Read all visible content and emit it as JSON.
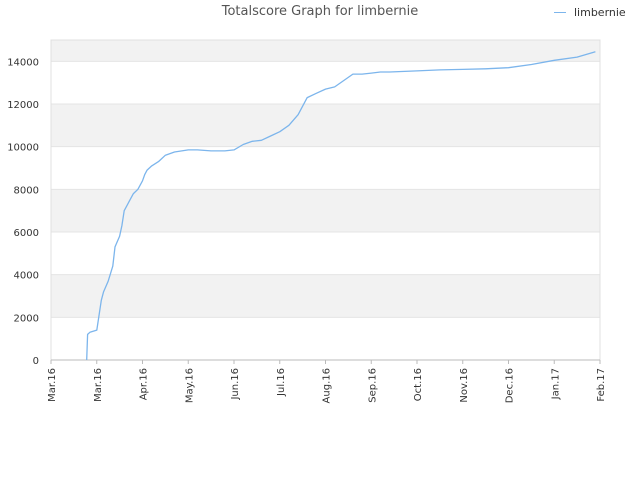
{
  "chart_data": {
    "type": "line",
    "title": "Totalscore Graph for limbernie",
    "xlabel": "",
    "ylabel": "",
    "ylim": [
      0,
      15000
    ],
    "y_ticks": [
      "0",
      "2000",
      "4000",
      "6000",
      "8000",
      "10000",
      "12000",
      "14000"
    ],
    "x_ticks": [
      "Mar.16",
      "Mar.16",
      "Apr.16",
      "May.16",
      "Jun.16",
      "Jul.16",
      "Aug.16",
      "Sep.16",
      "Oct.16",
      "Nov.16",
      "Dec.16",
      "Jan.17",
      "Feb.17"
    ],
    "legend_position": "top-right",
    "grid": true,
    "series": [
      {
        "name": "limbernie",
        "color": "#7cb5ec",
        "x": [
          0.78,
          0.8,
          0.85,
          1.0,
          1.1,
          1.15,
          1.25,
          1.35,
          1.4,
          1.5,
          1.55,
          1.6,
          1.7,
          1.8,
          1.9,
          2.0,
          2.05,
          2.1,
          2.2,
          2.35,
          2.5,
          2.7,
          3.0,
          3.2,
          3.5,
          3.8,
          4.0,
          4.2,
          4.4,
          4.6,
          4.8,
          5.0,
          5.2,
          5.4,
          5.6,
          5.8,
          6.0,
          6.2,
          6.4,
          6.6,
          6.8,
          7.0,
          7.2,
          7.4,
          7.6,
          8.0,
          8.5,
          9.0,
          9.5,
          10.0,
          10.5,
          11.0,
          11.5,
          11.9
        ],
        "y": [
          0,
          1200,
          1300,
          1400,
          2800,
          3200,
          3700,
          4400,
          5300,
          5800,
          6300,
          7000,
          7400,
          7800,
          8000,
          8400,
          8700,
          8900,
          9100,
          9300,
          9600,
          9750,
          9850,
          9850,
          9800,
          9800,
          9850,
          10100,
          10250,
          10300,
          10500,
          10700,
          11000,
          11500,
          12300,
          12500,
          12700,
          12800,
          13100,
          13400,
          13400,
          13450,
          13500,
          13500,
          13520,
          13550,
          13600,
          13620,
          13650,
          13700,
          13850,
          14050,
          14200,
          14450
        ]
      }
    ]
  }
}
